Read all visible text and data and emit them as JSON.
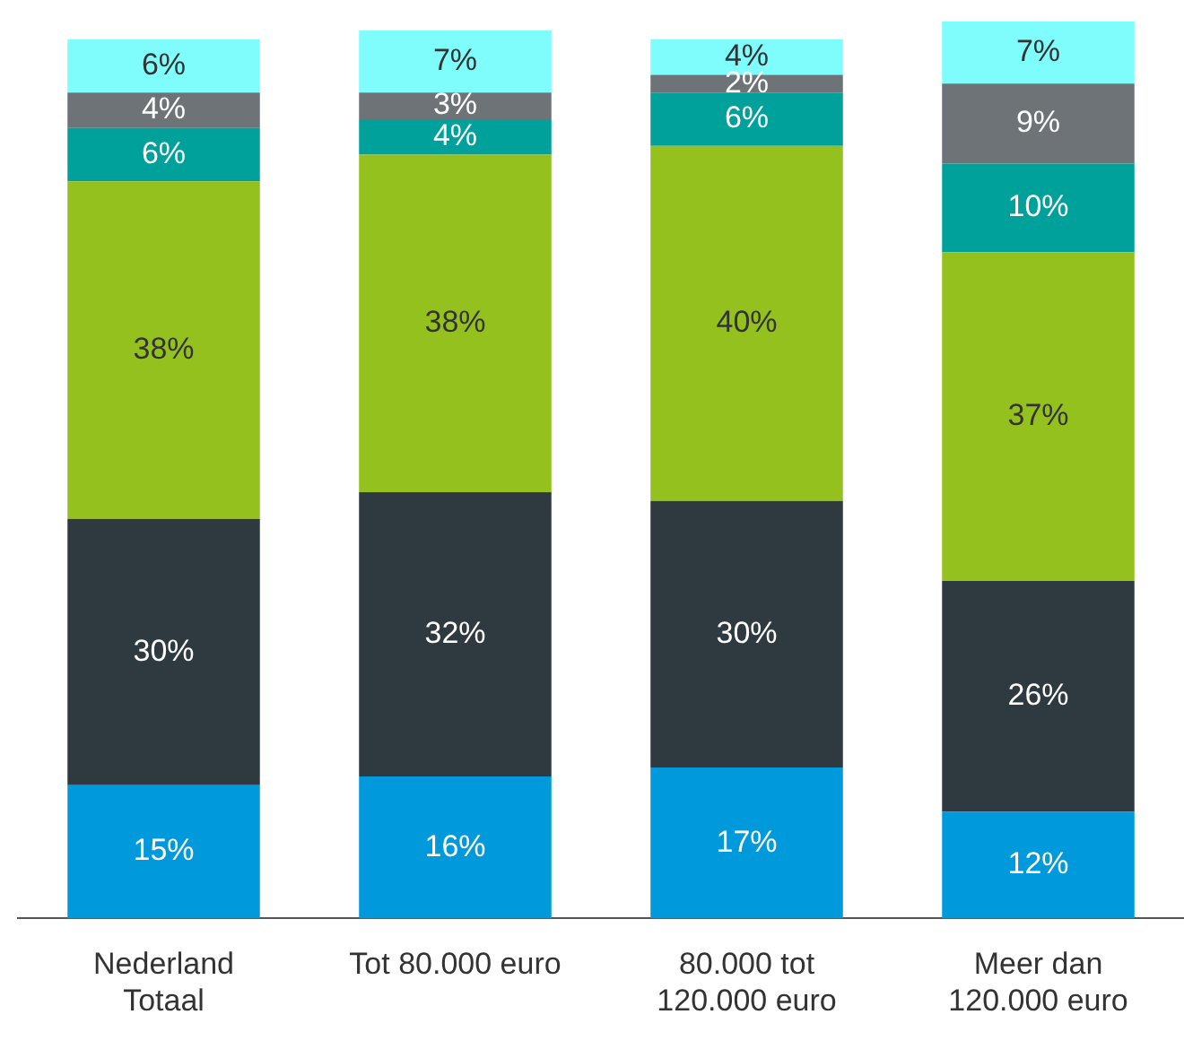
{
  "chart_data": {
    "type": "bar",
    "stacked": true,
    "grid": false,
    "legend": false,
    "tick_labels": "x",
    "categories": [
      "Nederland Totaal",
      "Tot 80.000 euro",
      "80.000 tot 120.000 euro",
      "Meer dan 120.000 euro"
    ],
    "series": [
      {
        "color": "#0099dc",
        "values": [
          15,
          16,
          17,
          12
        ],
        "value_labels": [
          "15%",
          "16%",
          "17%",
          "12%"
        ]
      },
      {
        "color": "#2f3a40",
        "values": [
          30,
          32,
          30,
          26
        ],
        "value_labels": [
          "30%",
          "32%",
          "30%",
          "26%"
        ]
      },
      {
        "color": "#95c11f",
        "values": [
          38,
          38,
          40,
          37
        ],
        "value_labels": [
          "38%",
          "38%",
          "40%",
          "37%"
        ]
      },
      {
        "color": "#00a19a",
        "values": [
          6,
          4,
          6,
          10
        ],
        "value_labels": [
          "6%",
          "4%",
          "6%",
          "10%"
        ]
      },
      {
        "color": "#6e7378",
        "values": [
          4,
          3,
          2,
          9
        ],
        "value_labels": [
          "4%",
          "3%",
          "2%",
          "9%"
        ]
      },
      {
        "color": "#7ffcfc",
        "values": [
          6,
          7,
          4,
          7
        ],
        "value_labels": [
          "6%",
          "7%",
          "4%",
          "7%"
        ]
      }
    ]
  }
}
